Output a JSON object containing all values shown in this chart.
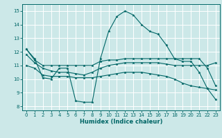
{
  "title": "",
  "xlabel": "Humidex (Indice chaleur)",
  "ylabel": "",
  "bg_color": "#cce8e8",
  "grid_color": "#ffffff",
  "line_color": "#006666",
  "xlim": [
    -0.5,
    23.5
  ],
  "ylim": [
    7.7,
    15.5
  ],
  "yticks": [
    8,
    9,
    10,
    11,
    12,
    13,
    14,
    15
  ],
  "xticks": [
    0,
    1,
    2,
    3,
    4,
    5,
    6,
    7,
    8,
    9,
    10,
    11,
    12,
    13,
    14,
    15,
    16,
    17,
    18,
    19,
    20,
    21,
    22,
    23
  ],
  "hours": [
    0,
    1,
    2,
    3,
    4,
    5,
    6,
    7,
    8,
    9,
    10,
    11,
    12,
    13,
    14,
    15,
    16,
    17,
    18,
    19,
    20,
    21,
    22,
    23
  ],
  "line_peak": [
    12.2,
    11.5,
    10.1,
    10.0,
    10.8,
    10.8,
    8.4,
    8.3,
    8.3,
    11.5,
    13.5,
    14.6,
    15.0,
    14.7,
    14.0,
    13.5,
    13.3,
    12.5,
    11.5,
    11.3,
    11.3,
    10.5,
    9.3,
    8.5
  ],
  "line_upper": [
    12.2,
    11.4,
    11.0,
    11.0,
    11.0,
    11.0,
    11.0,
    11.0,
    11.0,
    11.3,
    11.4,
    11.4,
    11.5,
    11.5,
    11.5,
    11.5,
    11.5,
    11.5,
    11.5,
    11.5,
    11.5,
    11.5,
    10.8,
    9.5
  ],
  "line_mid": [
    11.8,
    11.2,
    10.8,
    10.6,
    10.5,
    10.5,
    10.4,
    10.3,
    10.5,
    10.8,
    11.0,
    11.1,
    11.2,
    11.2,
    11.2,
    11.2,
    11.2,
    11.1,
    11.0,
    11.0,
    11.0,
    11.0,
    11.0,
    11.2
  ],
  "line_lower": [
    11.0,
    10.8,
    10.3,
    10.2,
    10.2,
    10.2,
    10.1,
    10.1,
    10.1,
    10.2,
    10.3,
    10.4,
    10.5,
    10.5,
    10.5,
    10.4,
    10.3,
    10.2,
    10.0,
    9.7,
    9.5,
    9.4,
    9.3,
    9.2
  ]
}
